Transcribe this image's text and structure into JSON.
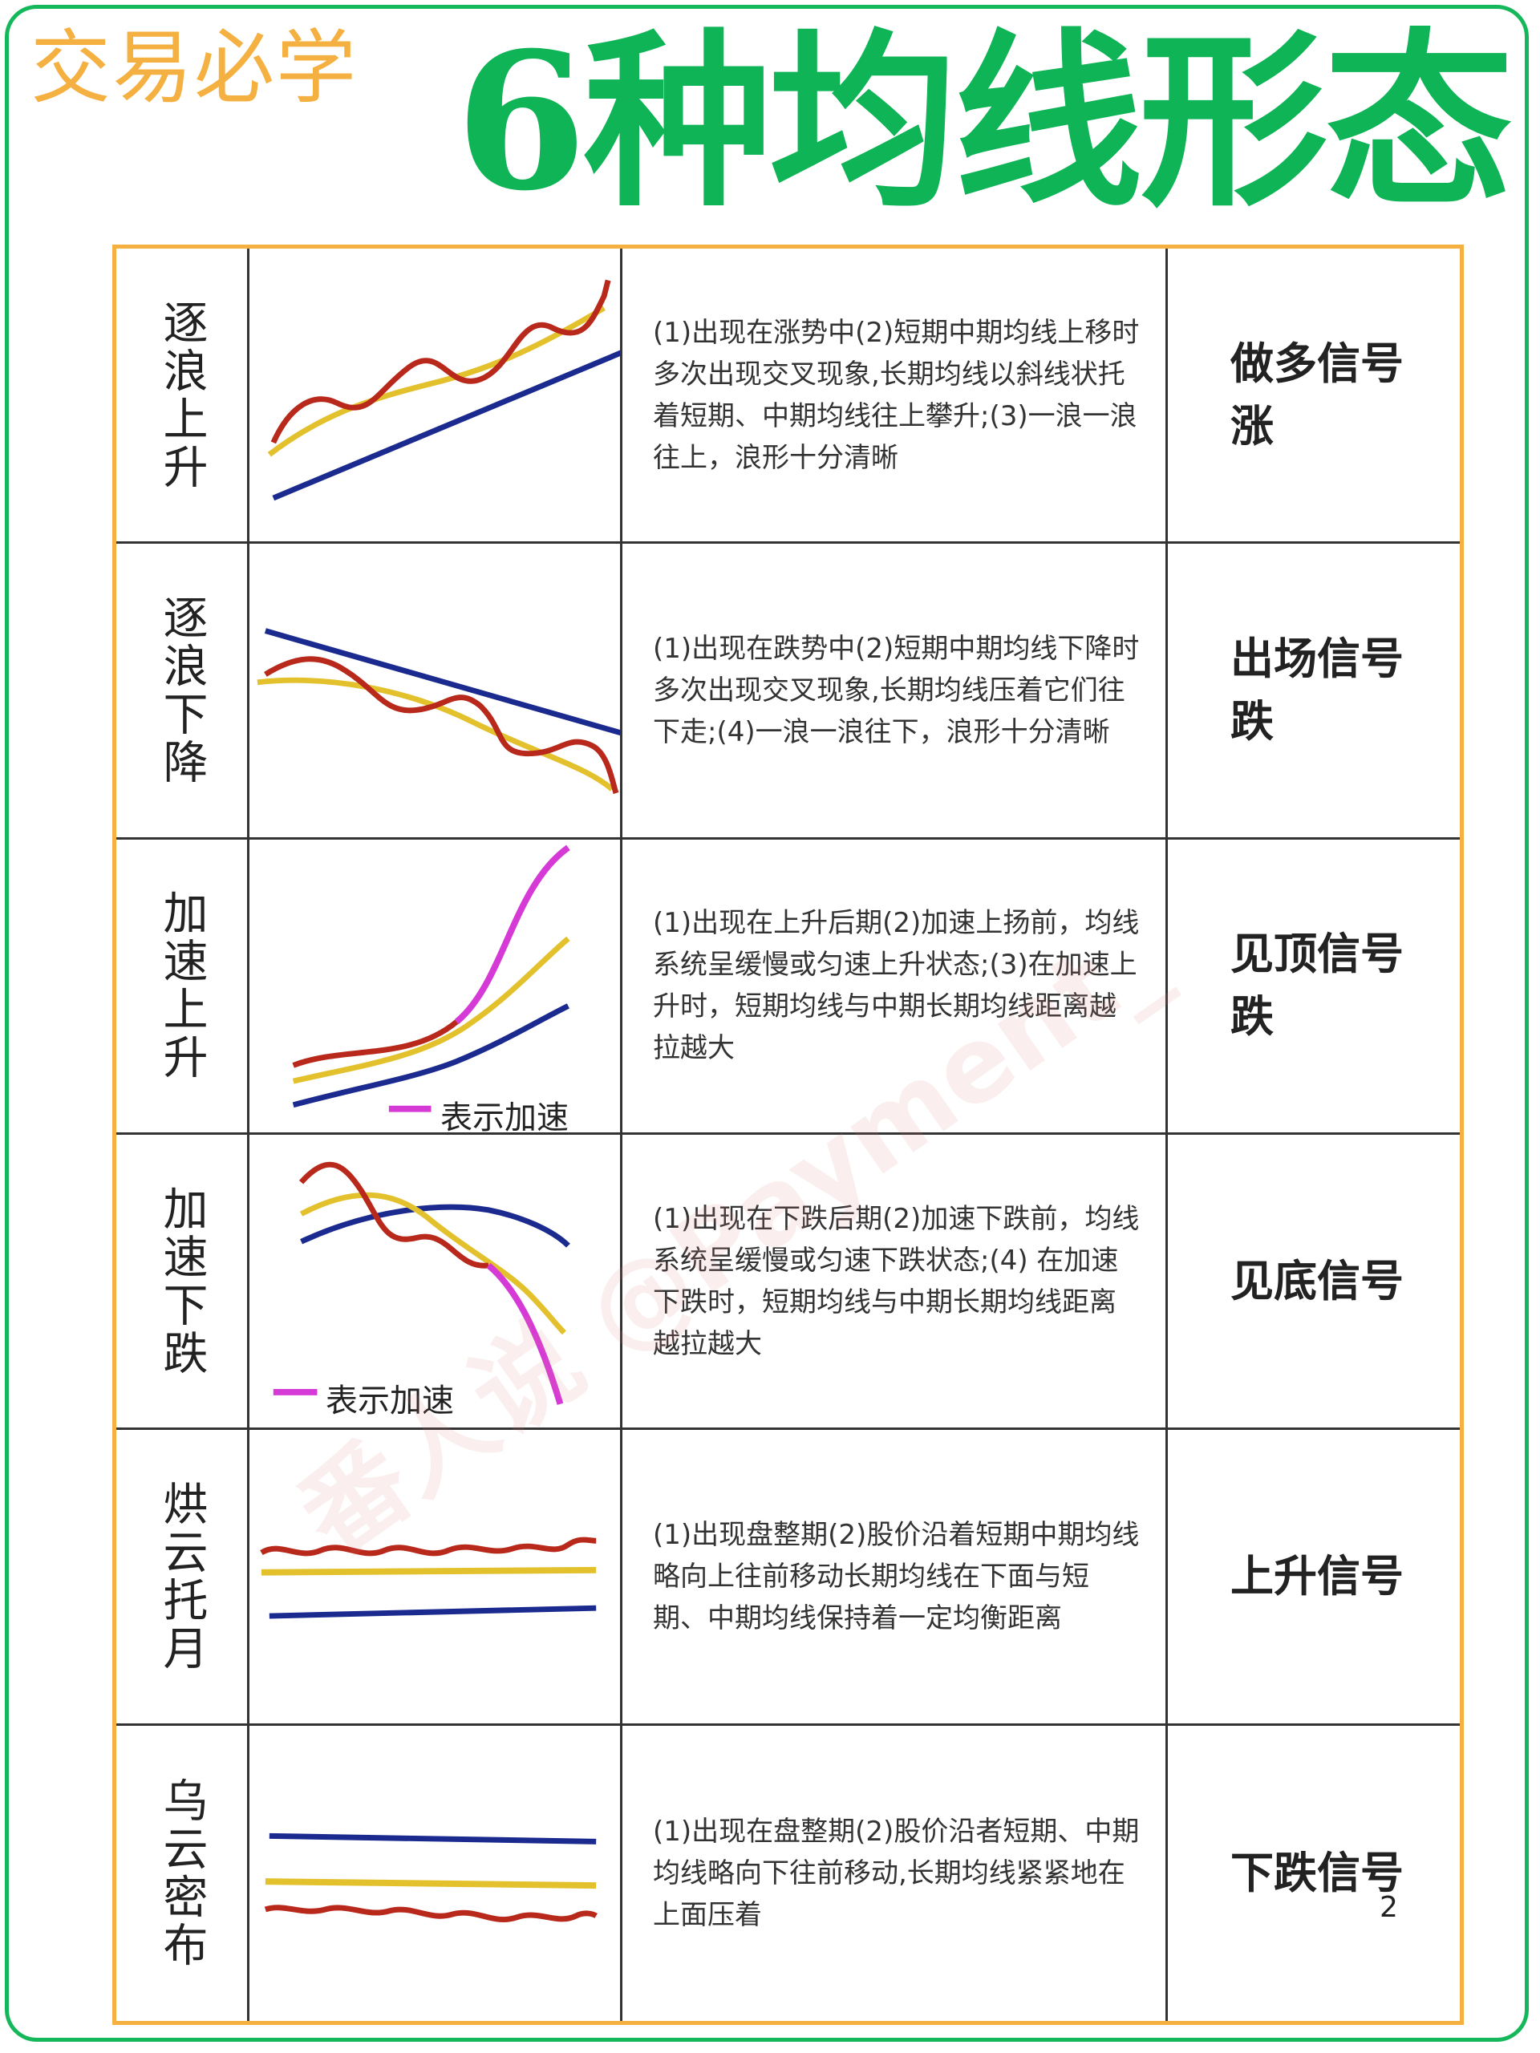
{
  "header": {
    "tag": "交易必学",
    "title": "6种均线形态"
  },
  "colors": {
    "long": "#1b2a8f",
    "mid": "#e3c12c",
    "short": "#b8281b",
    "accel": "#d63ad6",
    "border": "#f5b042",
    "brand": "#14b85a"
  },
  "patterns": [
    {
      "name": "逐浪上升",
      "description": "(1)出现在涨势中(2)短期中期均线上移时多次出现交叉现象,长期均线以斜线状托着短期、中期均线往上攀升;(3)一浪一浪往上，浪形十分清晰",
      "signal": [
        "做多信号",
        "涨"
      ]
    },
    {
      "name": "逐浪下降",
      "description": "(1)出现在跌势中(2)短期中期均线下降时多次出现交叉现象,长期均线压着它们往下走;(4)一浪一浪往下，浪形十分清晰",
      "signal": [
        "出场信号",
        "跌"
      ]
    },
    {
      "name": "加速上升",
      "legend": "表示加速",
      "description": "(1)出现在上升后期(2)加速上扬前，均线系统呈缓慢或匀速上升状态;(3)在加速上升时，短期均线与中期长期均线距离越拉越大",
      "signal": [
        "见顶信号",
        "跌"
      ]
    },
    {
      "name": "加速下跌",
      "legend": "表示加速",
      "description": "(1)出现在下跌后期(2)加速下跌前，均线系统呈缓慢或匀速下跌状态;(4) 在加速下跌时，短期均线与中期长期均线距离越拉越大",
      "signal": [
        "见底信号",
        ""
      ]
    },
    {
      "name": "烘云托月",
      "description": "(1)出现盘整期(2)股价沿着短期中期均线略向上往前移动长期均线在下面与短期、中期均线保持着一定均衡距离",
      "signal": [
        "上升信号",
        ""
      ]
    },
    {
      "name": "乌云密布",
      "description": "(1)出现在盘整期(2)股价沿者短期、中期均线略向下往前移动,长期均线紧紧地在上面压着",
      "signal": [
        "下跌信号",
        ""
      ]
    }
  ],
  "watermark": "番人说 @Payment_",
  "page_number": "2"
}
